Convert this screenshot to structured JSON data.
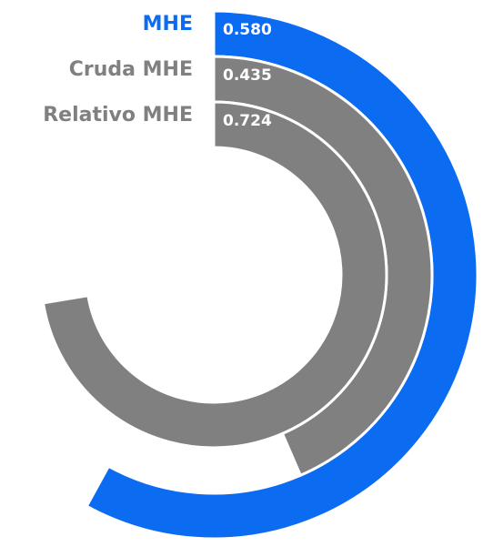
{
  "chart_data": {
    "type": "radial_bar",
    "categories": [
      "MHE",
      "Cruda MHE",
      "Relativo MHE"
    ],
    "values": [
      0.58,
      0.435,
      0.724
    ],
    "value_labels": [
      "0.580",
      "0.435",
      "0.724"
    ],
    "colors": [
      "#0b6cf2",
      "#808080",
      "#808080"
    ],
    "ylim": [
      0,
      1
    ]
  }
}
